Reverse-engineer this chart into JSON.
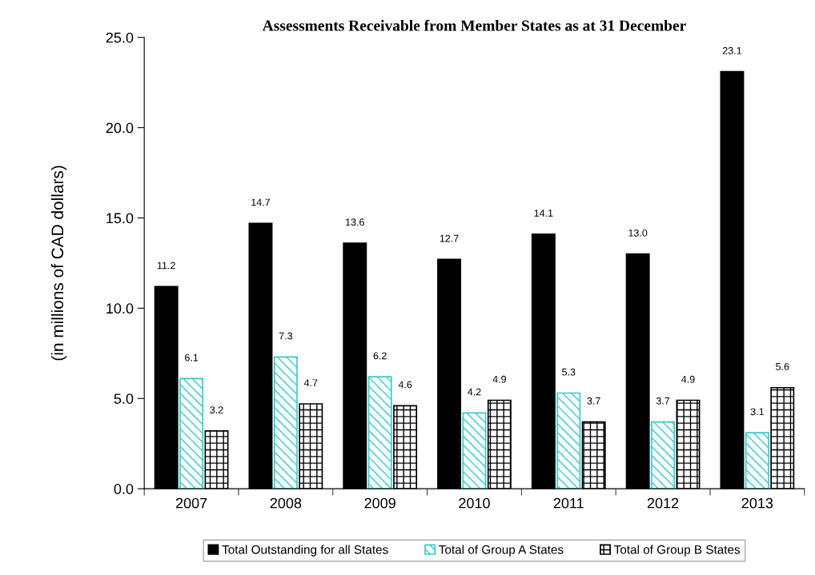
{
  "chart_data": {
    "type": "bar",
    "title": "Assessments Receivable from Member States as at 31 December",
    "ylabel": "(in millions of CAD dollars)",
    "categories": [
      "2007",
      "2008",
      "2009",
      "2010",
      "2011",
      "2012",
      "2013"
    ],
    "series": [
      {
        "name": "Total Outstanding for all States",
        "color": "#000000",
        "values": [
          11.2,
          14.7,
          13.6,
          12.7,
          14.1,
          13.0,
          23.1
        ],
        "value_labels": [
          "11.2",
          "14.7",
          "13.6",
          "12.7",
          "14.1",
          "13.0",
          "23.1"
        ]
      },
      {
        "name": "Total of Group A States",
        "color": "#33cccc",
        "values": [
          6.1,
          7.3,
          6.2,
          4.2,
          5.3,
          3.7,
          3.1
        ],
        "value_labels": [
          "6.1",
          "7.3",
          "6.2",
          "4.2",
          "5.3",
          "3.7",
          "3.1"
        ]
      },
      {
        "name": "Total of Group B States",
        "color": "#000000",
        "values": [
          3.2,
          4.7,
          4.6,
          4.9,
          3.7,
          4.9,
          5.6
        ],
        "value_labels": [
          "3.2",
          "4.7",
          "4.6",
          "4.9",
          "3.7",
          "4.9",
          "5.6"
        ]
      }
    ],
    "ylim": [
      0,
      25
    ],
    "yticks": [
      {
        "value": 0,
        "label": "0.0"
      },
      {
        "value": 5,
        "label": "5.0"
      },
      {
        "value": 10,
        "label": "10.0"
      },
      {
        "value": 15,
        "label": "15.0"
      },
      {
        "value": 20,
        "label": "20.0"
      },
      {
        "value": 25,
        "label": "25.0"
      }
    ],
    "grid": false,
    "legend": "bottom"
  }
}
